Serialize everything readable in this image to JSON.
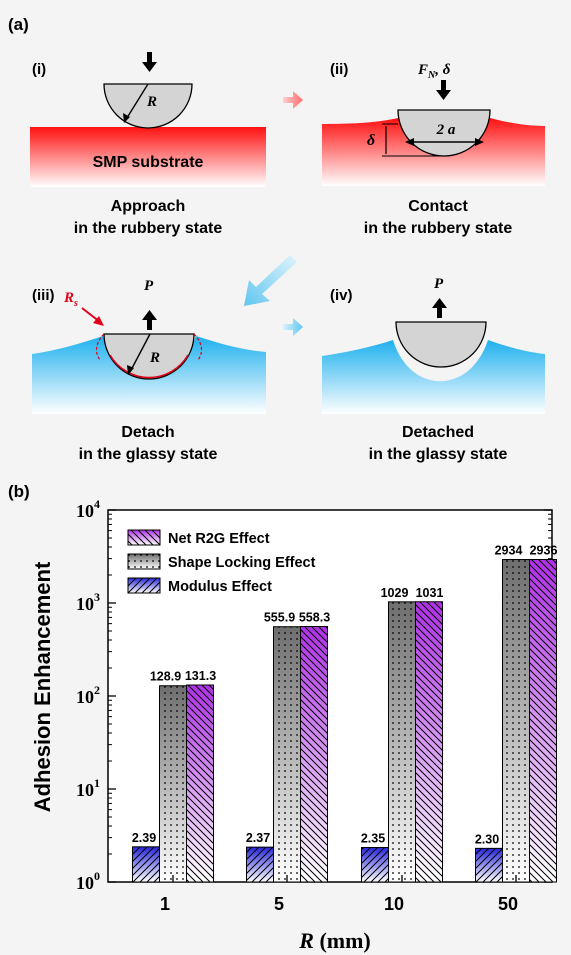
{
  "panel_a": {
    "label": "(a)",
    "steps": [
      {
        "num": "(i)",
        "line1": "Approach",
        "line2": "in the rubbery state"
      },
      {
        "num": "(ii)",
        "line1": "Contact",
        "line2": "in the rubbery state"
      },
      {
        "num": "(iii)",
        "line1": "Detach",
        "line2": "in the glassy state"
      },
      {
        "num": "(iv)",
        "line1": "Detached",
        "line2": "in the glassy state"
      }
    ],
    "substrate_label": "SMP substrate",
    "symbols": {
      "R": "R",
      "F": "F",
      "F_sub": "N",
      "F_rest": ", δ",
      "delta": "δ",
      "two_a": "2 a",
      "P": "P",
      "Rs": "R",
      "Rs_sub": "s"
    },
    "colors": {
      "rubbery": "#ff1a1a",
      "glassy": "#22b4ee",
      "indenter": "#d4d4d4",
      "arrow_red": "#ff7a7a",
      "arrow_blue": "#70ccf0",
      "Rs": "#e0001a"
    }
  },
  "panel_b": {
    "label": "(b)"
  },
  "chart_data": {
    "type": "bar",
    "scale": "log",
    "ylim": [
      1,
      10000
    ],
    "ylabel": "Adhesion Enhancement",
    "xlabel_symbol": "R",
    "xlabel_unit": " (mm)",
    "yticks": [
      {
        "base": "10",
        "exp": "0",
        "value": 1
      },
      {
        "base": "10",
        "exp": "1",
        "value": 10
      },
      {
        "base": "10",
        "exp": "2",
        "value": 100
      },
      {
        "base": "10",
        "exp": "3",
        "value": 1000
      },
      {
        "base": "10",
        "exp": "4",
        "value": 10000
      }
    ],
    "categories": [
      "1",
      "5",
      "10",
      "50"
    ],
    "series": [
      {
        "name": "Modulus Effect",
        "values": [
          2.39,
          2.37,
          2.35,
          2.3
        ],
        "labels": [
          "2.39",
          "2.37",
          "2.35",
          "2.30"
        ],
        "color": "#3636e0"
      },
      {
        "name": "Shape Locking Effect",
        "values": [
          128.9,
          555.9,
          1029,
          2934
        ],
        "labels": [
          "128.9",
          "555.9",
          "1029",
          "2934"
        ],
        "color": "#808080"
      },
      {
        "name": "Net R2G Effect",
        "values": [
          131.3,
          558.3,
          1031,
          2936
        ],
        "labels": [
          "131.3",
          "558.3",
          "1031",
          "2936"
        ],
        "color": "#b040e0"
      }
    ],
    "legend_position": "top-left"
  }
}
